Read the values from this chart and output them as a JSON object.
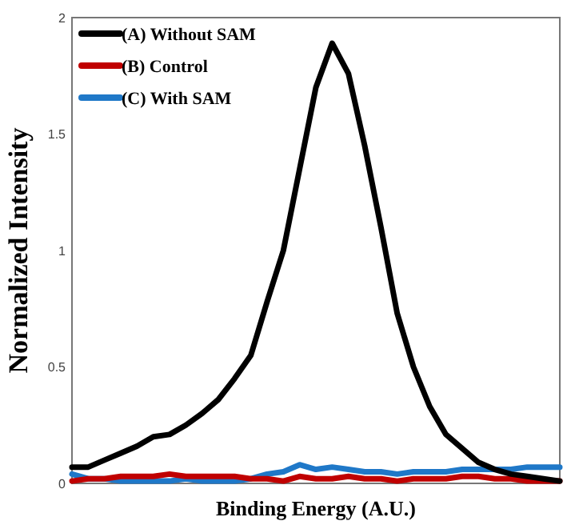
{
  "chart_data": {
    "type": "line",
    "xlabel": "Binding Energy (A.U.)",
    "ylabel": "Normalized Intensity",
    "categories": [
      null,
      null,
      null,
      null,
      null,
      null,
      null,
      null,
      null,
      null,
      null,
      null,
      null,
      null,
      null,
      null,
      null,
      null,
      null,
      null,
      null,
      null,
      null,
      null,
      null,
      null,
      null,
      null,
      null,
      null,
      null
    ],
    "series": [
      {
        "name": "(A) Without SAM",
        "color": "#000000",
        "values": [
          0.07,
          0.07,
          0.1,
          0.13,
          0.16,
          0.2,
          0.21,
          0.25,
          0.3,
          0.36,
          0.45,
          0.55,
          0.78,
          1.0,
          1.35,
          1.7,
          1.89,
          1.76,
          1.45,
          1.1,
          0.73,
          0.5,
          0.33,
          0.21,
          0.15,
          0.09,
          0.06,
          0.04,
          0.03,
          0.02,
          0.01
        ]
      },
      {
        "name": "(B) Control",
        "color": "#c00000",
        "values": [
          0.01,
          0.02,
          0.02,
          0.03,
          0.03,
          0.03,
          0.04,
          0.03,
          0.03,
          0.03,
          0.03,
          0.02,
          0.02,
          0.01,
          0.03,
          0.02,
          0.02,
          0.03,
          0.02,
          0.02,
          0.01,
          0.02,
          0.02,
          0.02,
          0.03,
          0.03,
          0.02,
          0.02,
          0.01,
          0.01,
          0.01
        ]
      },
      {
        "name": "(C) With SAM",
        "color": "#1f78c8",
        "values": [
          0.04,
          0.02,
          0.02,
          0.01,
          0.01,
          0.01,
          0.01,
          0.02,
          0.01,
          0.01,
          0.01,
          0.02,
          0.04,
          0.05,
          0.08,
          0.06,
          0.07,
          0.06,
          0.05,
          0.05,
          0.04,
          0.05,
          0.05,
          0.05,
          0.06,
          0.06,
          0.06,
          0.06,
          0.07,
          0.07,
          0.07
        ]
      }
    ],
    "ylim": [
      0,
      2
    ],
    "yticks": [
      0,
      0.5,
      1,
      1.5,
      2
    ],
    "grid": false,
    "legend": "top left",
    "marker": "none",
    "line_style": "solid"
  }
}
